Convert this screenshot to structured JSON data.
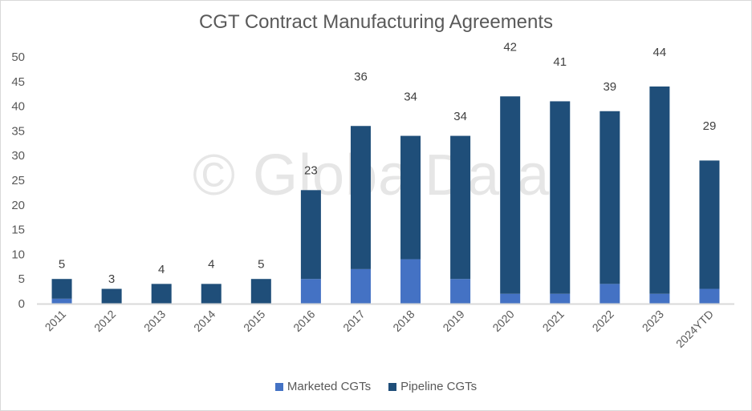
{
  "chart_data": {
    "type": "bar",
    "stacked": true,
    "title": "CGT Contract Manufacturing Agreements",
    "watermark": "© GlobalData",
    "xlabel": "",
    "ylabel": "",
    "ylim": [
      0,
      50
    ],
    "yticks": [
      0,
      5,
      10,
      15,
      20,
      25,
      30,
      35,
      40,
      45,
      50
    ],
    "grid": false,
    "legend_position": "bottom",
    "categories": [
      "2011",
      "2012",
      "2013",
      "2014",
      "2015",
      "2016",
      "2017",
      "2018",
      "2019",
      "2020",
      "2021",
      "2022",
      "2023",
      "2024YTD"
    ],
    "series": [
      {
        "name": "Marketed CGTs",
        "color": "#4472c4",
        "values": [
          1,
          0,
          0,
          0,
          0,
          5,
          7,
          9,
          5,
          2,
          2,
          4,
          2,
          3
        ]
      },
      {
        "name": "Pipeline CGTs",
        "color": "#1f4e79",
        "values": [
          4,
          3,
          4,
          4,
          5,
          18,
          29,
          25,
          29,
          40,
          39,
          35,
          42,
          26
        ]
      }
    ],
    "totals": [
      5,
      3,
      4,
      4,
      5,
      23,
      36,
      34,
      34,
      42,
      41,
      39,
      44,
      29
    ],
    "total_label_offsets": [
      3,
      2,
      3,
      4,
      3,
      4,
      10,
      8,
      4,
      10,
      8,
      5,
      7,
      7
    ]
  }
}
